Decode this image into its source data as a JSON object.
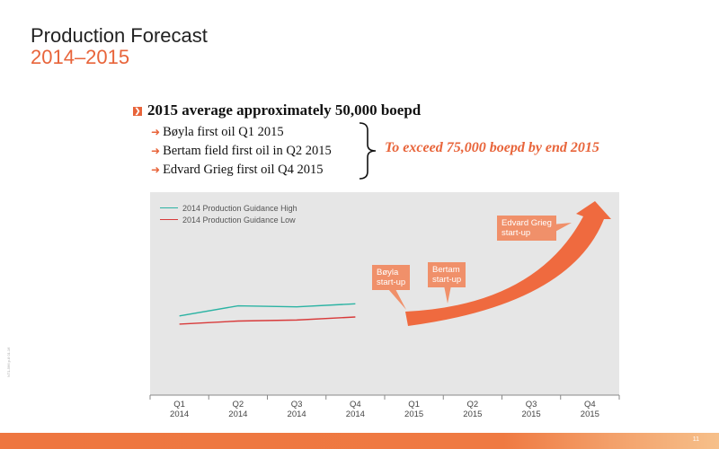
{
  "slide": {
    "title": "Production Forecast",
    "subtitle": "2014–2015",
    "page_number": "11",
    "side_code": "NT1-566 p.8 01.16"
  },
  "bullets": {
    "main": "2015 average approximately 50,000 boepd",
    "subs": [
      "Bøyla first oil Q1 2015",
      "Bertam field first oil in Q2 2015",
      "Edvard Grieg first oil Q4 2015"
    ],
    "callout": "To exceed 75,000 boepd by end 2015"
  },
  "colors": {
    "accent": "#e8643a",
    "high": "#2bb3a3",
    "low": "#d83a3a",
    "arrow": "#ef6a3f",
    "label_box": "#f0906a"
  },
  "icons": {
    "bullet": "arrow-square-icon",
    "sub": "chevron-right-icon",
    "brace": "brace-icon"
  },
  "chart_data": {
    "type": "line",
    "categories": [
      "Q1 2014",
      "Q2 2014",
      "Q3 2014",
      "Q4 2014",
      "Q1 2015",
      "Q2 2015",
      "Q3 2015",
      "Q4 2015"
    ],
    "x_labels": [
      [
        "Q1",
        "2014"
      ],
      [
        "Q2",
        "2014"
      ],
      [
        "Q3",
        "2014"
      ],
      [
        "Q4",
        "2014"
      ],
      [
        "Q1",
        "2015"
      ],
      [
        "Q2",
        "2015"
      ],
      [
        "Q3",
        "2015"
      ],
      [
        "Q4",
        "2015"
      ]
    ],
    "series": [
      {
        "name": "2014 Production Guidance High",
        "values": [
          39,
          44,
          43.5,
          45,
          null,
          null,
          null,
          null
        ]
      },
      {
        "name": "2014 Production Guidance Low",
        "values": [
          35,
          36.5,
          37,
          38.5,
          null,
          null,
          null,
          null
        ]
      }
    ],
    "ylim": [
      0,
      100
    ],
    "grid": false,
    "legend": "top-left",
    "annotations": [
      {
        "label": "Bøyla\nstart-up"
      },
      {
        "label": "Bertam\nstart-up"
      },
      {
        "label": "Edvard Grieg\nstart-up"
      }
    ]
  }
}
